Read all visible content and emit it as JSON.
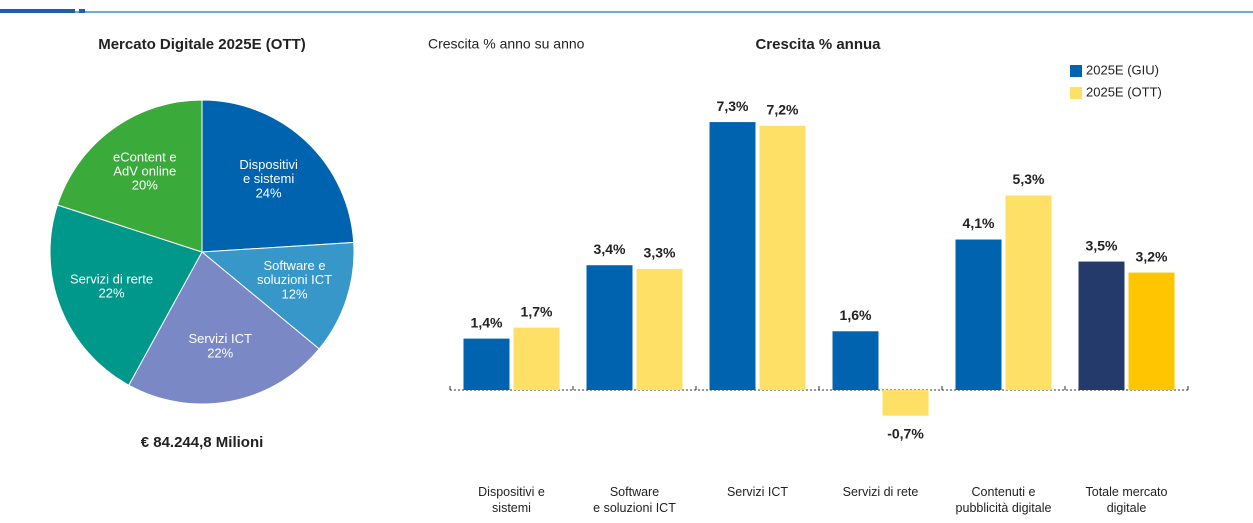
{
  "chart_data": [
    {
      "type": "pie",
      "title": "Mercato Digitale 2025E (OTT)",
      "footer": "€ 84.244,8 Milioni",
      "categories": [
        [
          "Dispositivi",
          "e sistemi"
        ],
        [
          "Software e",
          "soluzioni ICT"
        ],
        [
          "Servizi ICT"
        ],
        [
          "Servizi di rerte"
        ],
        [
          "eContent e",
          "AdV online"
        ]
      ],
      "values": [
        24,
        12,
        22,
        22,
        20
      ],
      "value_labels": [
        "24%",
        "12%",
        "22%",
        "22%",
        "20%"
      ],
      "colors": [
        "#0063af",
        "#3797c9",
        "#7b88c6",
        "#00988a",
        "#3aab3b"
      ]
    },
    {
      "type": "bar",
      "title": "Crescita % annua",
      "subtitle": "Crescita % anno su anno",
      "categories": [
        [
          "Dispositivi e",
          "sistemi"
        ],
        [
          "Software",
          "e soluzioni ICT"
        ],
        [
          "Servizi ICT"
        ],
        [
          "Servizi di rete"
        ],
        [
          "Contenuti e",
          "pubblicità digitale"
        ],
        [
          "Totale mercato",
          "digitale"
        ]
      ],
      "series": [
        {
          "name": "2025E (GIU)",
          "color": "#0063af",
          "colors": [
            "#0063af",
            "#0063af",
            "#0063af",
            "#0063af",
            "#0063af",
            "#243a6b"
          ],
          "values": [
            1.4,
            3.4,
            7.3,
            1.6,
            4.1,
            3.5
          ],
          "value_labels": [
            "1,4%",
            "3,4%",
            "7,3%",
            "1,6%",
            "4,1%",
            "3,5%"
          ]
        },
        {
          "name": "2025E (OTT)",
          "color": "#ffe066",
          "colors": [
            "#ffe066",
            "#ffe066",
            "#ffe066",
            "#ffe066",
            "#ffe066",
            "#ffc600"
          ],
          "values": [
            1.7,
            3.3,
            7.2,
            -0.7,
            5.3,
            3.2
          ],
          "value_labels": [
            "1,7%",
            "3,3%",
            "7,2%",
            "-0,7%",
            "5,3%",
            "3,2%"
          ]
        }
      ],
      "ylim": [
        -2,
        8
      ],
      "legend": "top-right"
    }
  ]
}
